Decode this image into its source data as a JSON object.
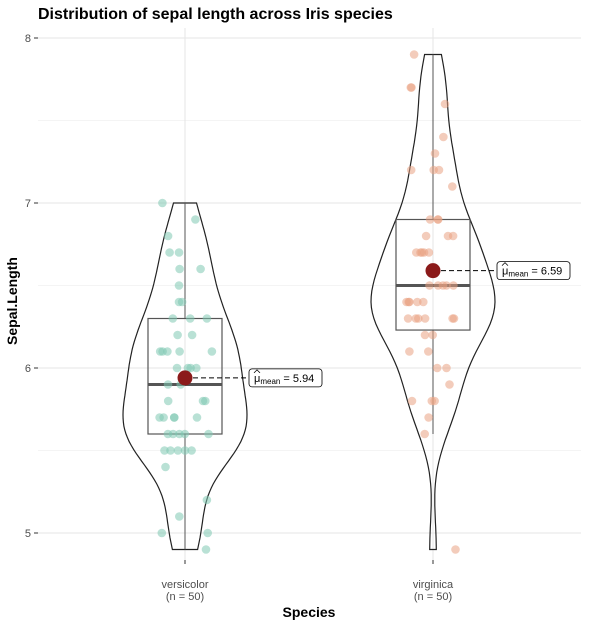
{
  "chart_data": {
    "type": "violin",
    "title": "Distribution of sepal length across Iris species",
    "xlabel": "Species",
    "ylabel": "Sepal.Length",
    "ylim": [
      4.85,
      8.1
    ],
    "yticks": [
      5,
      6,
      7,
      8
    ],
    "grid": true,
    "legend": "none",
    "categories": [
      {
        "name": "versicolor",
        "n_label": "(n = 50)",
        "color": "#7fc8b2",
        "mean": 5.94,
        "mean_label_prefix": "μ",
        "mean_label_sub": "mean",
        "mean_label_value": "= 5.94",
        "box": {
          "q1": 5.6,
          "median": 5.9,
          "q3": 6.3,
          "whisker_low": 4.9,
          "whisker_high": 7.0
        },
        "points": [
          4.9,
          5.0,
          5.0,
          5.1,
          5.2,
          5.4,
          5.5,
          5.5,
          5.5,
          5.5,
          5.5,
          5.6,
          5.6,
          5.6,
          5.6,
          5.6,
          5.7,
          5.7,
          5.7,
          5.7,
          5.7,
          5.8,
          5.8,
          5.8,
          5.9,
          5.9,
          6.0,
          6.0,
          6.0,
          6.0,
          6.1,
          6.1,
          6.1,
          6.1,
          6.1,
          6.2,
          6.2,
          6.3,
          6.3,
          6.3,
          6.4,
          6.4,
          6.5,
          6.6,
          6.6,
          6.7,
          6.7,
          6.8,
          6.9,
          7.0
        ]
      },
      {
        "name": "virginica",
        "n_label": "(n = 50)",
        "color": "#e9a283",
        "mean": 6.59,
        "mean_label_prefix": "μ",
        "mean_label_sub": "mean",
        "mean_label_value": "= 6.59",
        "box": {
          "q1": 6.23,
          "median": 6.5,
          "q3": 6.9,
          "whisker_low": 5.6,
          "whisker_high": 7.9
        },
        "points": [
          4.9,
          5.6,
          5.7,
          5.8,
          5.8,
          5.8,
          5.9,
          6.0,
          6.0,
          6.1,
          6.1,
          6.2,
          6.2,
          6.3,
          6.3,
          6.3,
          6.3,
          6.3,
          6.3,
          6.4,
          6.4,
          6.4,
          6.4,
          6.4,
          6.5,
          6.5,
          6.5,
          6.5,
          6.5,
          6.7,
          6.7,
          6.7,
          6.7,
          6.7,
          6.8,
          6.8,
          6.8,
          6.9,
          6.9,
          6.9,
          7.1,
          7.2,
          7.2,
          7.2,
          7.3,
          7.4,
          7.6,
          7.7,
          7.7,
          7.9
        ]
      }
    ]
  }
}
